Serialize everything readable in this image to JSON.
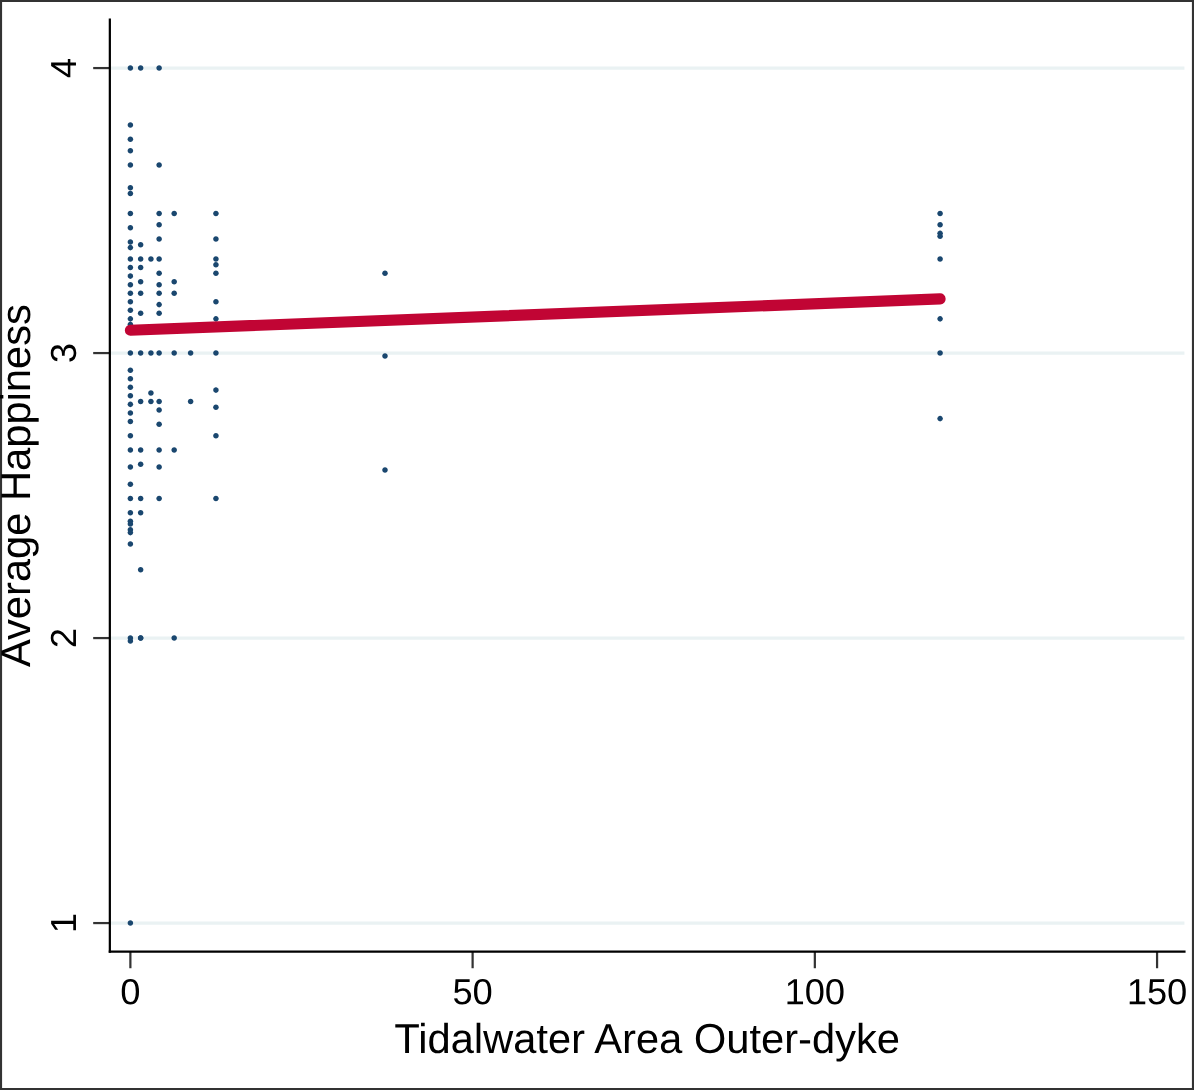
{
  "chart_data": {
    "type": "scatter",
    "xlabel": "Tidalwater Area Outer-dyke",
    "ylabel": "Average Happiness",
    "xlim": [
      -3,
      154
    ],
    "ylim": [
      0.9,
      4.17
    ],
    "xticks": [
      0,
      50,
      100,
      150
    ],
    "yticks": [
      1,
      2,
      3,
      4
    ],
    "grid": "y",
    "legend": false,
    "series": [
      {
        "color": "#1a476f",
        "marker": "circle",
        "x": [
          0,
          0,
          0,
          0,
          0,
          0,
          0,
          0,
          0,
          0,
          0,
          0,
          0,
          0,
          0,
          0,
          0,
          0,
          0,
          0,
          0,
          0,
          0,
          0,
          0,
          0,
          0,
          0,
          0,
          0,
          0,
          0,
          0,
          0,
          0,
          0,
          0,
          0,
          0,
          0,
          0,
          0,
          1.5,
          1.5,
          1.5,
          1.5,
          1.5,
          1.5,
          1.5,
          1.5,
          1.5,
          1.5,
          1.5,
          1.5,
          1.5,
          1.5,
          1.5,
          1.5,
          3,
          3,
          3,
          3,
          4.2,
          4.2,
          4.2,
          4.2,
          4.2,
          4.2,
          4.2,
          4.2,
          4.2,
          4.2,
          4.2,
          4.2,
          4.2,
          4.2,
          4.2,
          4.2,
          4.2,
          4.2,
          6.4,
          6.4,
          6.4,
          6.4,
          6.4,
          6.4,
          8.8,
          8.8,
          12.5,
          12.5,
          12.5,
          12.5,
          12.5,
          12.5,
          12.5,
          12.5,
          12.5,
          12.5,
          12.5,
          12.5,
          37.2,
          37.2,
          37.2,
          118.3,
          118.3,
          118.3,
          118.3,
          118.3,
          118.3,
          118.3,
          118.3
        ],
        "values": [
          4.0,
          3.8,
          3.75,
          3.71,
          3.66,
          3.58,
          3.56,
          3.49,
          3.44,
          3.39,
          3.37,
          3.33,
          3.3,
          3.27,
          3.24,
          3.21,
          3.18,
          3.15,
          3.12,
          3.1,
          3.0,
          2.94,
          2.91,
          2.88,
          2.85,
          2.82,
          2.79,
          2.76,
          2.71,
          2.66,
          2.6,
          2.54,
          2.49,
          2.44,
          2.41,
          2.4,
          2.38,
          2.37,
          2.33,
          1.99,
          1.0,
          2.0,
          4.0,
          3.38,
          3.33,
          3.3,
          3.25,
          3.21,
          3.14,
          3.0,
          2.83,
          2.66,
          2.61,
          2.49,
          2.44,
          2.24,
          2.0,
          2.0,
          3.33,
          3.0,
          2.86,
          2.83,
          4.0,
          3.66,
          3.49,
          3.45,
          3.4,
          3.33,
          3.28,
          3.24,
          3.21,
          3.17,
          3.14,
          3.0,
          2.83,
          2.8,
          2.75,
          2.66,
          2.6,
          2.49,
          3.49,
          3.25,
          3.21,
          3.0,
          2.66,
          2.0,
          3.0,
          2.83,
          3.49,
          3.4,
          3.33,
          3.31,
          3.28,
          3.18,
          3.12,
          3.0,
          2.87,
          2.81,
          2.71,
          2.49,
          3.28,
          2.99,
          2.59,
          3.49,
          3.45,
          3.42,
          3.41,
          3.33,
          3.12,
          3.0,
          2.77
        ]
      },
      {
        "type": "line",
        "color": "#c10534",
        "x": [
          0,
          118.3
        ],
        "values": [
          3.08,
          3.19
        ]
      }
    ]
  }
}
